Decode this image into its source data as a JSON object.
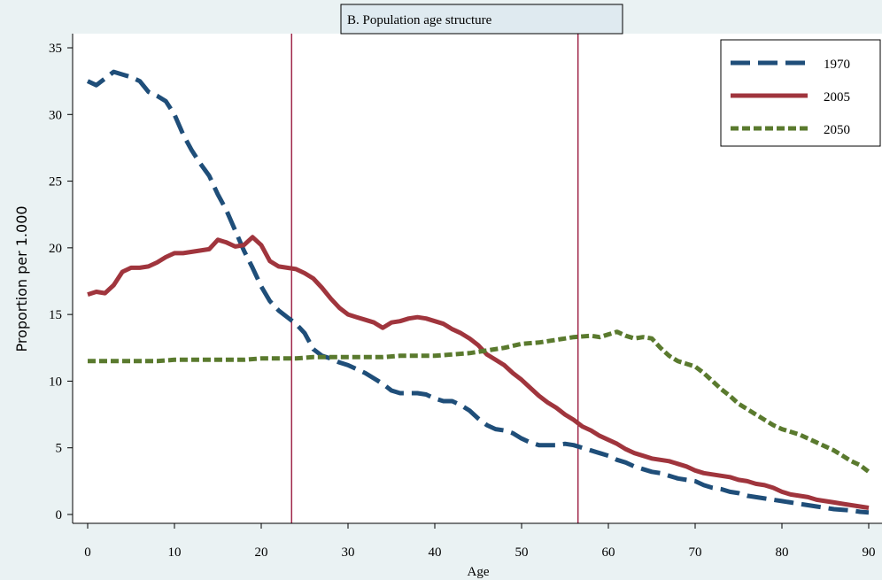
{
  "chart_data": {
    "type": "line",
    "title": "B. Population age structure",
    "xlabel": "Age",
    "ylabel": "Proportion per 1.000",
    "xlim": [
      0,
      90
    ],
    "ylim": [
      0,
      35
    ],
    "xticks": [
      0,
      10,
      20,
      30,
      40,
      50,
      60,
      70,
      80,
      90
    ],
    "yticks": [
      0,
      5,
      10,
      15,
      20,
      25,
      30,
      35
    ],
    "grid": false,
    "legend_position": "top-right",
    "vertical_lines": [
      23.5,
      56.5
    ],
    "series": [
      {
        "name": "1970",
        "color": "#1f4e79",
        "dash": "long-dash",
        "x": [
          0,
          1,
          2,
          3,
          4,
          5,
          6,
          7,
          8,
          9,
          10,
          11,
          12,
          13,
          14,
          15,
          16,
          17,
          18,
          19,
          20,
          21,
          22,
          23,
          24,
          25,
          26,
          27,
          28,
          29,
          30,
          31,
          32,
          33,
          34,
          35,
          36,
          37,
          38,
          39,
          40,
          41,
          42,
          43,
          44,
          45,
          46,
          47,
          48,
          49,
          50,
          51,
          52,
          53,
          54,
          55,
          56,
          57,
          58,
          59,
          60,
          61,
          62,
          63,
          64,
          65,
          66,
          67,
          68,
          69,
          70,
          71,
          72,
          73,
          74,
          75,
          76,
          77,
          78,
          79,
          80,
          81,
          82,
          83,
          84,
          85,
          86,
          87,
          88,
          89,
          90
        ],
        "y": [
          32.5,
          32.2,
          32.7,
          33.2,
          33.0,
          32.8,
          32.5,
          31.7,
          31.4,
          31.0,
          30.0,
          28.5,
          27.3,
          26.3,
          25.4,
          24.0,
          22.8,
          21.3,
          19.8,
          18.5,
          17.1,
          16.0,
          15.3,
          14.8,
          14.3,
          13.6,
          12.4,
          11.9,
          11.7,
          11.4,
          11.2,
          10.9,
          10.6,
          10.2,
          9.8,
          9.3,
          9.1,
          9.1,
          9.1,
          9.0,
          8.7,
          8.5,
          8.5,
          8.2,
          7.8,
          7.2,
          6.7,
          6.4,
          6.3,
          6.1,
          5.7,
          5.4,
          5.2,
          5.2,
          5.2,
          5.3,
          5.2,
          5.0,
          4.8,
          4.6,
          4.4,
          4.1,
          3.9,
          3.6,
          3.4,
          3.2,
          3.1,
          2.9,
          2.7,
          2.6,
          2.5,
          2.2,
          2.0,
          1.9,
          1.7,
          1.6,
          1.4,
          1.3,
          1.2,
          1.1,
          1.0,
          0.9,
          0.8,
          0.7,
          0.6,
          0.5,
          0.4,
          0.35,
          0.3,
          0.2,
          0.15
        ]
      },
      {
        "name": "2005",
        "color": "#a0353d",
        "dash": "solid",
        "x": [
          0,
          1,
          2,
          3,
          4,
          5,
          6,
          7,
          8,
          9,
          10,
          11,
          12,
          13,
          14,
          15,
          16,
          17,
          18,
          19,
          20,
          21,
          22,
          23,
          24,
          25,
          26,
          27,
          28,
          29,
          30,
          31,
          32,
          33,
          34,
          35,
          36,
          37,
          38,
          39,
          40,
          41,
          42,
          43,
          44,
          45,
          46,
          47,
          48,
          49,
          50,
          51,
          52,
          53,
          54,
          55,
          56,
          57,
          58,
          59,
          60,
          61,
          62,
          63,
          64,
          65,
          66,
          67,
          68,
          69,
          70,
          71,
          72,
          73,
          74,
          75,
          76,
          77,
          78,
          79,
          80,
          81,
          82,
          83,
          84,
          85,
          86,
          87,
          88,
          89,
          90
        ],
        "y": [
          16.5,
          16.7,
          16.6,
          17.2,
          18.2,
          18.5,
          18.5,
          18.6,
          18.9,
          19.3,
          19.6,
          19.6,
          19.7,
          19.8,
          19.9,
          20.6,
          20.4,
          20.1,
          20.2,
          20.8,
          20.2,
          19.0,
          18.6,
          18.5,
          18.4,
          18.1,
          17.7,
          17.0,
          16.2,
          15.5,
          15.0,
          14.8,
          14.6,
          14.4,
          14.0,
          14.4,
          14.5,
          14.7,
          14.8,
          14.7,
          14.5,
          14.3,
          13.9,
          13.6,
          13.2,
          12.7,
          12.0,
          11.6,
          11.2,
          10.6,
          10.1,
          9.5,
          8.9,
          8.4,
          8.0,
          7.5,
          7.1,
          6.6,
          6.3,
          5.9,
          5.6,
          5.3,
          4.9,
          4.6,
          4.4,
          4.2,
          4.1,
          4.0,
          3.8,
          3.6,
          3.3,
          3.1,
          3.0,
          2.9,
          2.8,
          2.6,
          2.5,
          2.3,
          2.2,
          2.0,
          1.7,
          1.5,
          1.4,
          1.3,
          1.1,
          1.0,
          0.9,
          0.8,
          0.7,
          0.6,
          0.5
        ]
      },
      {
        "name": "2050",
        "color": "#5a7a2e",
        "dash": "short-dash",
        "x": [
          0,
          2,
          4,
          6,
          8,
          10,
          12,
          14,
          16,
          18,
          20,
          22,
          24,
          26,
          28,
          30,
          32,
          34,
          36,
          38,
          40,
          42,
          44,
          46,
          48,
          50,
          52,
          54,
          56,
          58,
          59,
          60,
          61,
          62,
          63,
          64,
          65,
          66,
          67,
          68,
          69,
          70,
          71,
          72,
          73,
          74,
          75,
          76,
          77,
          78,
          79,
          80,
          81,
          82,
          83,
          84,
          85,
          86,
          87,
          88,
          89,
          90
        ],
        "y": [
          11.5,
          11.5,
          11.5,
          11.5,
          11.5,
          11.6,
          11.6,
          11.6,
          11.6,
          11.6,
          11.7,
          11.7,
          11.7,
          11.8,
          11.8,
          11.8,
          11.8,
          11.8,
          11.9,
          11.9,
          11.9,
          12.0,
          12.1,
          12.3,
          12.5,
          12.8,
          12.9,
          13.1,
          13.3,
          13.4,
          13.3,
          13.5,
          13.7,
          13.4,
          13.2,
          13.3,
          13.2,
          12.5,
          11.9,
          11.5,
          11.3,
          11.1,
          10.6,
          10.0,
          9.4,
          8.9,
          8.3,
          7.9,
          7.5,
          7.1,
          6.7,
          6.4,
          6.2,
          6.0,
          5.7,
          5.4,
          5.1,
          4.8,
          4.4,
          4.0,
          3.7,
          3.2
        ]
      }
    ]
  }
}
